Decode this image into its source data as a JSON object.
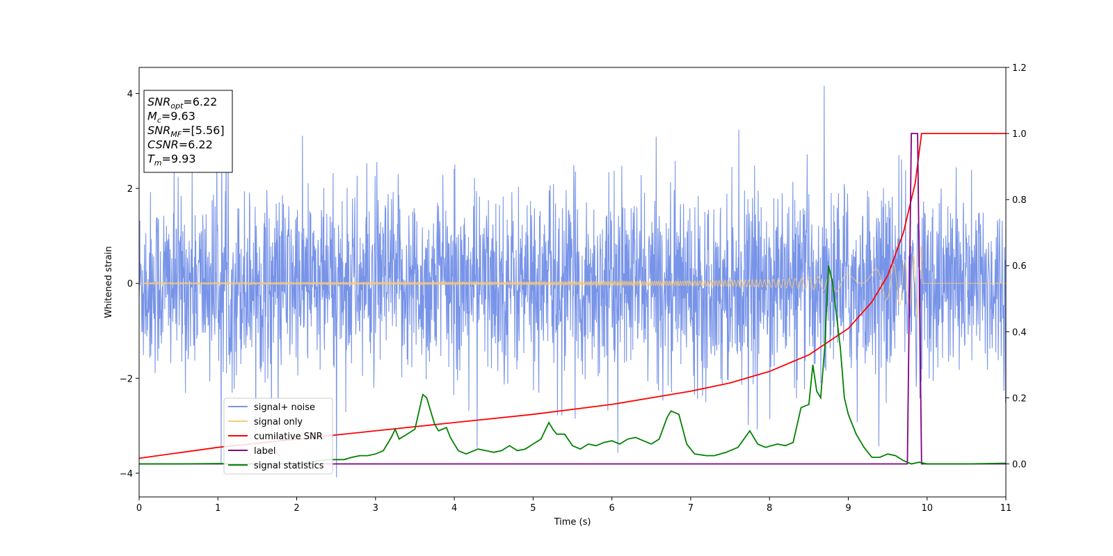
{
  "chart_data": {
    "type": "line",
    "xlabel": "Time (s)",
    "ylabel_left": "Whitened strain",
    "xlim": [
      0,
      11
    ],
    "ylim_left": [
      -4.5,
      4.55
    ],
    "ylim_right": [
      -0.1,
      1.2
    ],
    "x_ticks": [
      "0",
      "1",
      "2",
      "3",
      "4",
      "5",
      "6",
      "7",
      "8",
      "9",
      "10",
      "11"
    ],
    "y_left_ticks": [
      "4",
      "2",
      "0",
      "−2",
      "−4"
    ],
    "y_right_ticks": [
      "1.2",
      "1.0",
      "0.8",
      "0.6",
      "0.4",
      "0.2",
      "0.0"
    ],
    "grid": false,
    "legend_location": "lower-left",
    "legend": [
      {
        "label": "signal+ noise",
        "color": "#7894e8"
      },
      {
        "label": "signal only",
        "color": "#f5c97c"
      },
      {
        "label": "cumilative SNR",
        "color": "#ff0000"
      },
      {
        "label": "label",
        "color": "#800080"
      },
      {
        "label": "signal statistics",
        "color": "#008000"
      }
    ],
    "info_box": [
      {
        "base": "SNR",
        "sub": "opt",
        "value": "=6.22"
      },
      {
        "base": "M",
        "sub": "c",
        "value": "=9.63"
      },
      {
        "base": "SNR",
        "sub": "MF",
        "value": "=[5.56]"
      },
      {
        "base": "CSNR",
        "sub": "",
        "value": "=6.22"
      },
      {
        "base": "T",
        "sub": "m",
        "value": "=9.93"
      }
    ],
    "series": [
      {
        "name": "signal+ noise",
        "axis": "left",
        "color": "#7894e8",
        "description_points": {
          "x_start": 0,
          "x_end": 11,
          "typical_band": [
            -1.8,
            1.9
          ],
          "max": 4.18,
          "min": -4.1
        }
      },
      {
        "name": "signal only",
        "axis": "left",
        "color": "#f5c97c",
        "envelope": {
          "x": [
            0,
            5,
            7,
            8,
            8.5,
            9,
            9.5,
            9.8,
            9.93,
            9.94,
            11
          ],
          "amp": [
            0.02,
            0.03,
            0.05,
            0.08,
            0.12,
            0.2,
            0.35,
            0.55,
            0.8,
            0,
            0
          ]
        }
      },
      {
        "name": "cumilative SNR",
        "axis": "right",
        "color": "#ff0000",
        "x": [
          0,
          1,
          2,
          3,
          4,
          5,
          6,
          7,
          7.5,
          8,
          8.5,
          9,
          9.3,
          9.5,
          9.7,
          9.85,
          9.93,
          9.94,
          11
        ],
        "y": [
          0.017,
          0.05,
          0.075,
          0.1,
          0.125,
          0.15,
          0.18,
          0.22,
          0.245,
          0.28,
          0.33,
          0.41,
          0.49,
          0.57,
          0.7,
          0.85,
          1.0,
          1.0,
          1.0
        ]
      },
      {
        "name": "label",
        "axis": "right",
        "color": "#800080",
        "x": [
          0,
          9.75,
          9.8,
          9.88,
          9.93,
          9.94,
          11
        ],
        "y": [
          0,
          0,
          1.0,
          1.0,
          0,
          0,
          0
        ]
      },
      {
        "name": "signal statistics",
        "axis": "right",
        "color": "#008000",
        "x": [
          0,
          0.5,
          1,
          1.5,
          2,
          2.4,
          2.6,
          2.7,
          2.8,
          2.9,
          3.0,
          3.1,
          3.2,
          3.25,
          3.3,
          3.4,
          3.5,
          3.6,
          3.65,
          3.7,
          3.75,
          3.8,
          3.9,
          3.95,
          4.05,
          4.15,
          4.3,
          4.4,
          4.5,
          4.6,
          4.7,
          4.8,
          4.9,
          5.0,
          5.1,
          5.2,
          5.25,
          5.3,
          5.4,
          5.5,
          5.6,
          5.7,
          5.8,
          5.9,
          6.0,
          6.1,
          6.2,
          6.3,
          6.4,
          6.5,
          6.6,
          6.7,
          6.75,
          6.85,
          6.95,
          7.05,
          7.2,
          7.3,
          7.45,
          7.6,
          7.75,
          7.85,
          7.95,
          8.1,
          8.2,
          8.3,
          8.4,
          8.5,
          8.55,
          8.6,
          8.65,
          8.7,
          8.75,
          8.8,
          8.85,
          8.9,
          8.95,
          9.0,
          9.1,
          9.2,
          9.3,
          9.4,
          9.5,
          9.6,
          9.7,
          9.8,
          9.9,
          10.0,
          10.5,
          11.0
        ],
        "y": [
          0.0,
          0.0,
          0.001,
          0.0,
          0.001,
          0.013,
          0.013,
          0.02,
          0.025,
          0.025,
          0.03,
          0.04,
          0.08,
          0.105,
          0.075,
          0.09,
          0.105,
          0.21,
          0.2,
          0.16,
          0.12,
          0.1,
          0.11,
          0.08,
          0.04,
          0.03,
          0.045,
          0.04,
          0.035,
          0.04,
          0.055,
          0.04,
          0.045,
          0.06,
          0.075,
          0.125,
          0.105,
          0.09,
          0.09,
          0.055,
          0.045,
          0.06,
          0.055,
          0.065,
          0.07,
          0.06,
          0.075,
          0.08,
          0.07,
          0.06,
          0.075,
          0.14,
          0.16,
          0.15,
          0.06,
          0.03,
          0.025,
          0.025,
          0.035,
          0.05,
          0.1,
          0.06,
          0.05,
          0.06,
          0.055,
          0.065,
          0.17,
          0.18,
          0.3,
          0.22,
          0.2,
          0.35,
          0.6,
          0.55,
          0.45,
          0.35,
          0.2,
          0.15,
          0.09,
          0.05,
          0.02,
          0.02,
          0.03,
          0.025,
          0.01,
          0.0,
          0.005,
          0.0,
          0.0,
          0.002
        ]
      }
    ]
  }
}
